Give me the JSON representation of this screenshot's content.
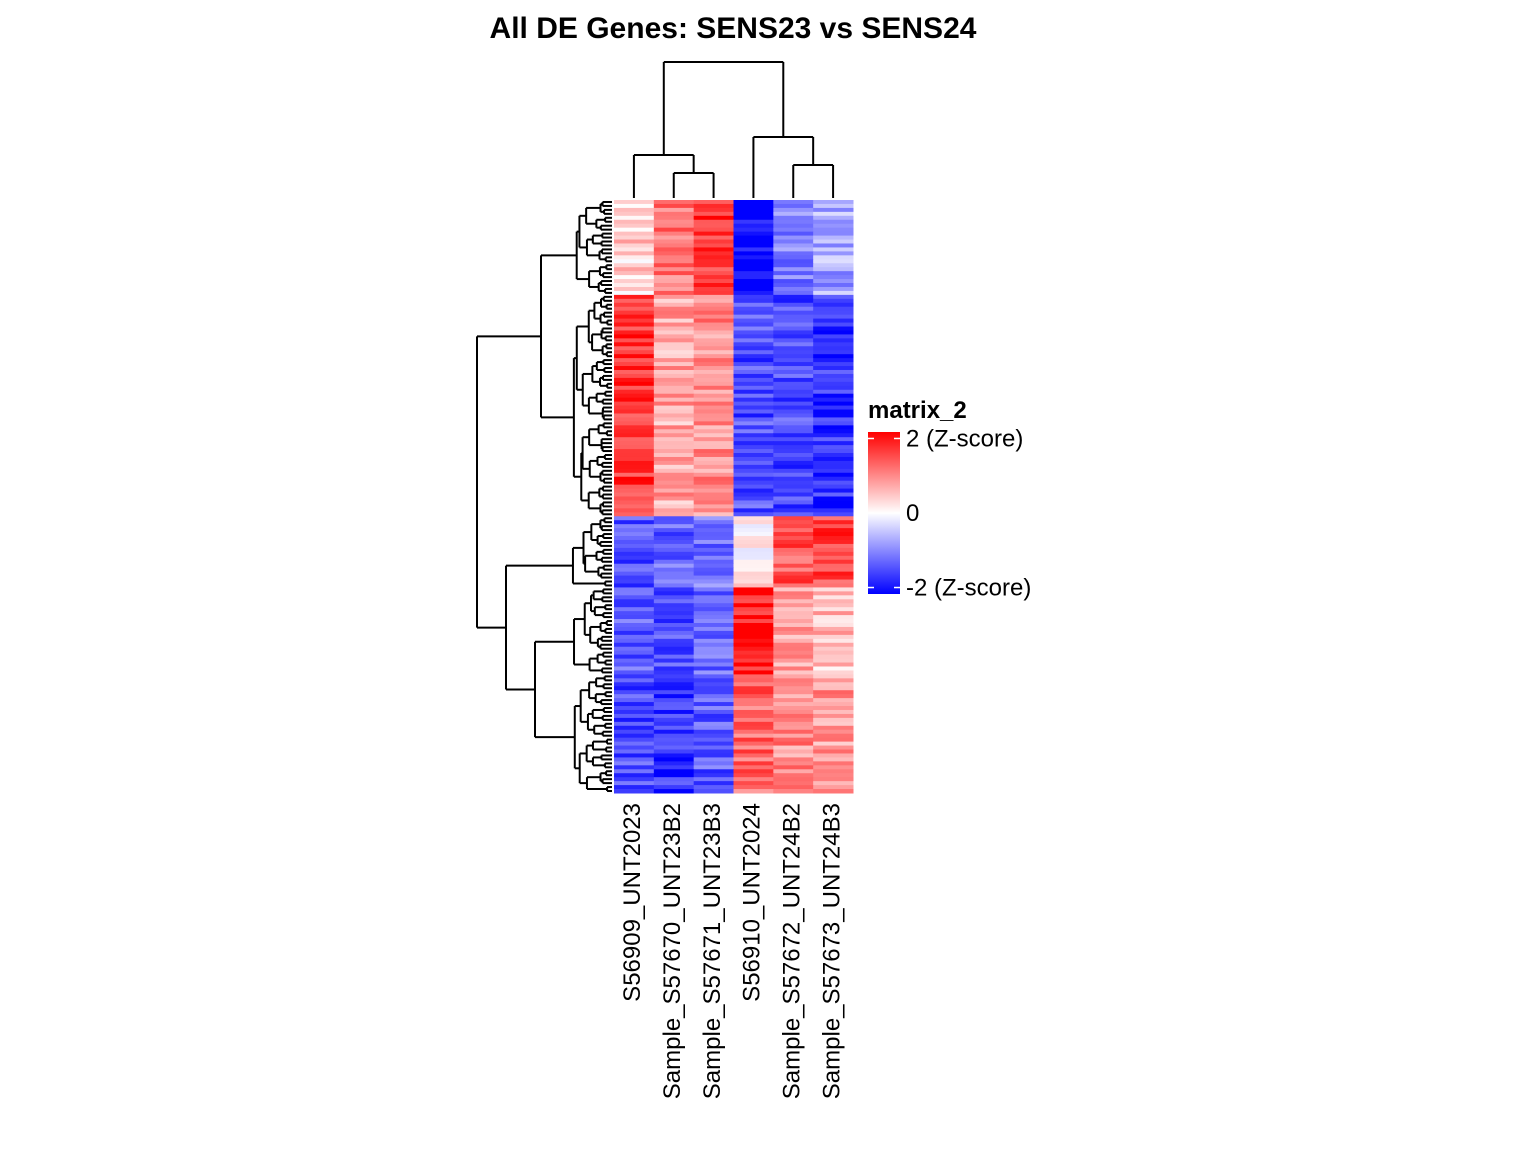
{
  "chart_data": {
    "type": "heatmap",
    "title": "All DE Genes: SENS23  vs  SENS24",
    "columns": [
      "S56909_UNT2023",
      "Sample_S57670_UNT23B2",
      "Sample_S57671_UNT23B3",
      "S56910_UNT2024",
      "Sample_S57672_UNT24B2",
      "Sample_S57673_UNT24B3"
    ],
    "column_dendrogram": "((S56909_UNT2023,(Sample_S57670_UNT23B2,Sample_S57671_UNT23B3)),(S56910_UNT2024,(Sample_S57672_UNT24B2,Sample_S57673_UNT24B3)))",
    "row_blocks": [
      {
        "rows": 24,
        "values": [
          0.4,
          1.1,
          1.6,
          -2.0,
          -1.0,
          -0.7
        ]
      },
      {
        "rows": 56,
        "values": [
          1.6,
          0.7,
          0.9,
          -1.4,
          -1.4,
          -1.6
        ]
      },
      {
        "rows": 18,
        "values": [
          -1.4,
          -1.2,
          -1.1,
          0.1,
          1.3,
          1.5
        ]
      },
      {
        "rows": 22,
        "values": [
          -1.3,
          -1.4,
          -1.2,
          1.8,
          0.8,
          0.5
        ]
      },
      {
        "rows": 30,
        "values": [
          -1.4,
          -1.6,
          -1.3,
          1.2,
          0.9,
          0.8
        ]
      }
    ],
    "legend": {
      "title": "matrix_2",
      "ticks": [
        {
          "value": 2,
          "label": "2 (Z-score)"
        },
        {
          "value": 0,
          "label": "0"
        },
        {
          "value": -2,
          "label": "-2 (Z-score)"
        }
      ],
      "colors": {
        "low": "#0000ff",
        "mid": "#ffffff",
        "high": "#ff0000"
      }
    }
  }
}
